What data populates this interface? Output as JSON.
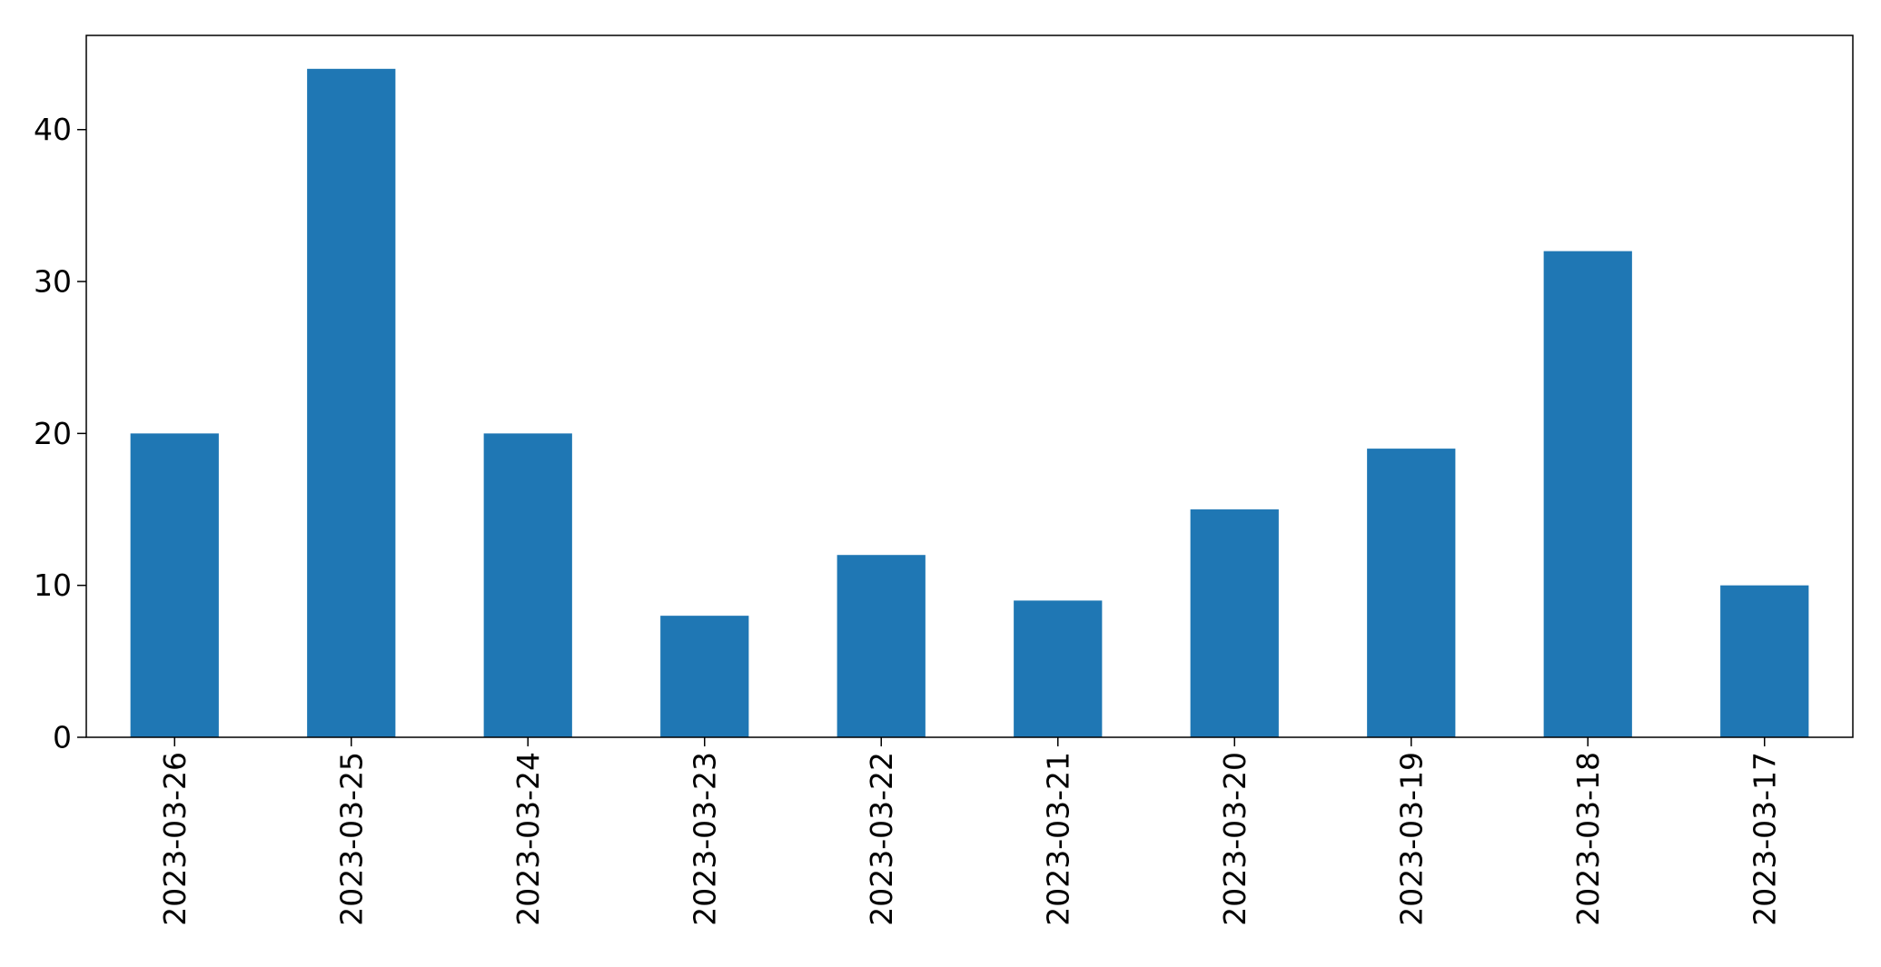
{
  "chart_data": {
    "type": "bar",
    "title": "",
    "xlabel": "",
    "ylabel": "",
    "categories": [
      "2023-03-26",
      "2023-03-25",
      "2023-03-24",
      "2023-03-23",
      "2023-03-22",
      "2023-03-21",
      "2023-03-20",
      "2023-03-19",
      "2023-03-18",
      "2023-03-17"
    ],
    "series": [
      {
        "values": [
          20,
          44,
          20,
          8,
          12,
          9,
          15,
          19,
          32,
          10
        ],
        "color": "#1f77b4"
      }
    ],
    "ylim": [
      0,
      46.2
    ],
    "yticks": [
      0,
      10,
      20,
      30,
      40
    ],
    "grid": false,
    "legend": "none",
    "x_tick_rotation": "vertical"
  }
}
